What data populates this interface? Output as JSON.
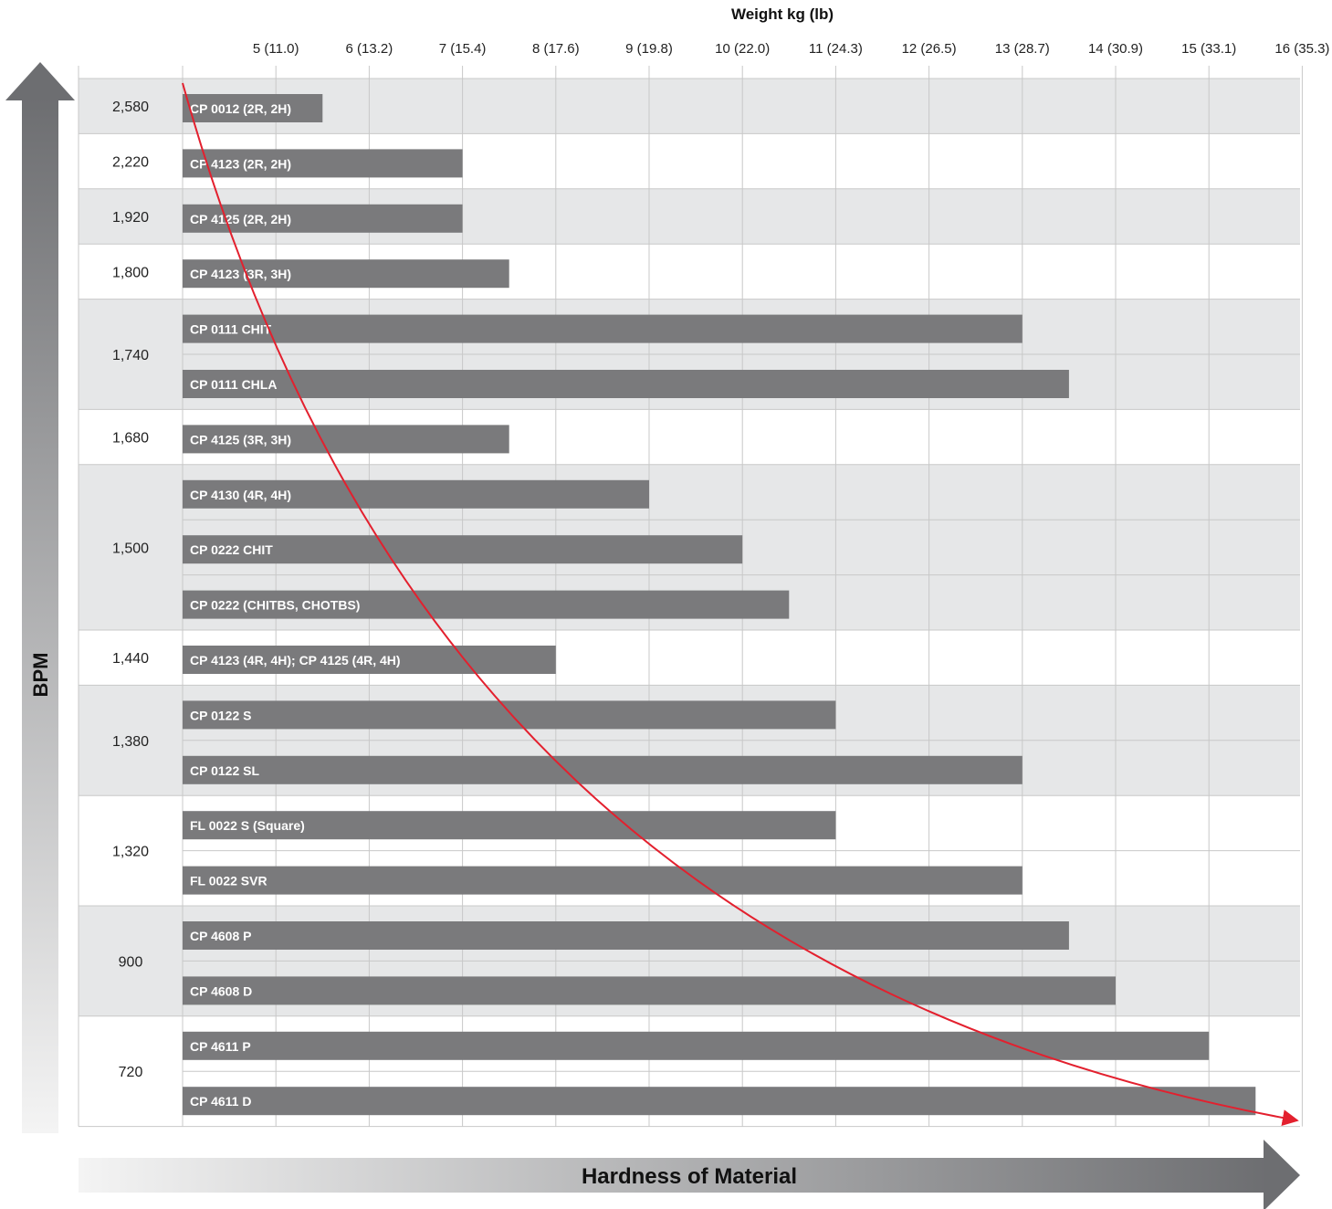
{
  "chart_data": {
    "type": "bar",
    "orientation": "horizontal",
    "title": "",
    "x_axis_title": "Weight kg (lb)",
    "x_tick_values": [
      5,
      6,
      7,
      8,
      9,
      10,
      11,
      12,
      13,
      14,
      15,
      16
    ],
    "x_tick_labels": [
      "5 (11.0)",
      "6 (13.2)",
      "7 (15.4)",
      "8 (17.6)",
      "9 (19.8)",
      "10 (22.0)",
      "11 (24.3)",
      "12 (26.5)",
      "13 (28.7)",
      "14 (30.9)",
      "15 (33.1)",
      "16 (35.3)"
    ],
    "xlim": [
      4,
      16
    ],
    "grid": true,
    "y_axis_title": "BPM",
    "bottom_arrow_title": "Hardness of Material",
    "groups": [
      {
        "bpm": "2,580",
        "bars": [
          {
            "label": "CP 0012 (2R, 2H)",
            "value": 5.5
          }
        ]
      },
      {
        "bpm": "2,220",
        "bars": [
          {
            "label": "CP 4123 (2R, 2H)",
            "value": 7.0
          }
        ]
      },
      {
        "bpm": "1,920",
        "bars": [
          {
            "label": "CP 4125 (2R, 2H)",
            "value": 7.0
          }
        ]
      },
      {
        "bpm": "1,800",
        "bars": [
          {
            "label": "CP 4123 (3R, 3H)",
            "value": 7.5
          }
        ]
      },
      {
        "bpm": "1,740",
        "bars": [
          {
            "label": "CP 0111 CHIT",
            "value": 13.0
          },
          {
            "label": "CP 0111 CHLA",
            "value": 13.5
          }
        ]
      },
      {
        "bpm": "1,680",
        "bars": [
          {
            "label": "CP 4125 (3R, 3H)",
            "value": 7.5
          }
        ]
      },
      {
        "bpm": "1,500",
        "bars": [
          {
            "label": "CP 4130 (4R, 4H)",
            "value": 9.0
          },
          {
            "label": "CP 0222 CHIT",
            "value": 10.0
          },
          {
            "label": "CP 0222 (CHITBS, CHOTBS)",
            "value": 10.5
          }
        ]
      },
      {
        "bpm": "1,440",
        "bars": [
          {
            "label": "CP 4123 (4R, 4H); CP 4125 (4R, 4H)",
            "value": 8.0
          }
        ]
      },
      {
        "bpm": "1,380",
        "bars": [
          {
            "label": "CP 0122 S",
            "value": 11.0
          },
          {
            "label": "CP 0122 SL",
            "value": 13.0
          }
        ]
      },
      {
        "bpm": "1,320",
        "bars": [
          {
            "label": "FL 0022 S (Square)",
            "value": 11.0
          },
          {
            "label": "FL 0022 SVR",
            "value": 13.0
          }
        ]
      },
      {
        "bpm": "900",
        "bars": [
          {
            "label": "CP 4608 P",
            "value": 13.5
          },
          {
            "label": "CP 4608 D",
            "value": 14.0
          }
        ]
      },
      {
        "bpm": "720",
        "bars": [
          {
            "label": "CP 4611 P",
            "value": 15.0
          },
          {
            "label": "CP 4611 D",
            "value": 15.5
          }
        ]
      }
    ],
    "colors": {
      "bar": "#7a7a7c",
      "band_shaded": "#e6e7e8",
      "band_plain": "#ffffff",
      "grid": "#c8c8c8",
      "trend_curve": "#e3202e",
      "arrow_dark": "#6d6e71",
      "arrow_light": "#f4f4f4"
    }
  }
}
